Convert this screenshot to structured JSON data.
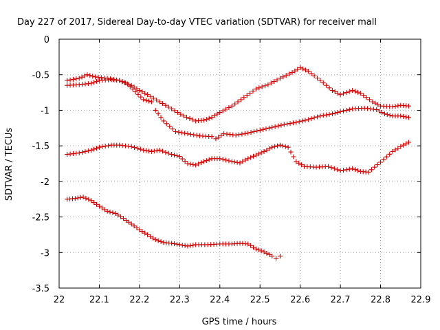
{
  "chart_data": {
    "type": "scatter",
    "title": "Day 227 of 2017, Sidereal Day-to-day VTEC variation (SDTVAR) for receiver mall",
    "xlabel": "GPS time / hours",
    "ylabel": "SDTVAR / TECUs",
    "xlim": [
      22,
      22.9
    ],
    "ylim": [
      -3.5,
      0
    ],
    "x_ticks": [
      "22",
      "22.1",
      "22.2",
      "22.3",
      "22.4",
      "22.5",
      "22.6",
      "22.7",
      "22.8",
      "22.9"
    ],
    "y_ticks": [
      "0",
      "-0.5",
      "-1",
      "-1.5",
      "-2",
      "-2.5",
      "-3",
      "-3.5"
    ],
    "grid": true,
    "marker": "plus",
    "color": "#cc0000",
    "series": [
      {
        "name": "series-1",
        "points": [
          [
            22.02,
            -0.58
          ],
          [
            22.05,
            -0.55
          ],
          [
            22.07,
            -0.5
          ],
          [
            22.09,
            -0.53
          ],
          [
            22.12,
            -0.55
          ],
          [
            22.15,
            -0.58
          ],
          [
            22.18,
            -0.65
          ],
          [
            22.2,
            -0.72
          ],
          [
            22.22,
            -0.78
          ],
          [
            22.25,
            -0.88
          ],
          [
            22.28,
            -0.98
          ],
          [
            22.31,
            -1.08
          ],
          [
            22.34,
            -1.15
          ],
          [
            22.36,
            -1.14
          ],
          [
            22.38,
            -1.1
          ],
          [
            22.4,
            -1.03
          ],
          [
            22.43,
            -0.94
          ],
          [
            22.46,
            -0.82
          ],
          [
            22.49,
            -0.7
          ],
          [
            22.52,
            -0.64
          ],
          [
            22.55,
            -0.55
          ],
          [
            22.58,
            -0.47
          ],
          [
            22.6,
            -0.4
          ],
          [
            22.62,
            -0.45
          ],
          [
            22.65,
            -0.58
          ],
          [
            22.68,
            -0.72
          ],
          [
            22.7,
            -0.78
          ],
          [
            22.73,
            -0.72
          ],
          [
            22.75,
            -0.76
          ],
          [
            22.78,
            -0.88
          ],
          [
            22.8,
            -0.94
          ],
          [
            22.83,
            -0.95
          ],
          [
            22.85,
            -0.93
          ],
          [
            22.87,
            -0.94
          ]
        ]
      },
      {
        "name": "series-2",
        "points": [
          [
            22.02,
            -0.65
          ],
          [
            22.05,
            -0.64
          ],
          [
            22.08,
            -0.62
          ],
          [
            22.1,
            -0.58
          ],
          [
            22.13,
            -0.57
          ],
          [
            22.15,
            -0.58
          ],
          [
            22.17,
            -0.63
          ],
          [
            22.19,
            -0.74
          ],
          [
            22.21,
            -0.85
          ],
          [
            22.23,
            -0.88
          ],
          [
            22.24,
            -1.0
          ],
          [
            22.26,
            -1.15
          ],
          [
            22.29,
            -1.3
          ],
          [
            22.32,
            -1.33
          ],
          [
            22.35,
            -1.36
          ],
          [
            22.38,
            -1.37
          ],
          [
            22.39,
            -1.4
          ],
          [
            22.41,
            -1.33
          ],
          [
            22.44,
            -1.35
          ],
          [
            22.47,
            -1.32
          ],
          [
            22.5,
            -1.28
          ],
          [
            22.53,
            -1.24
          ],
          [
            22.56,
            -1.2
          ],
          [
            22.59,
            -1.17
          ],
          [
            22.62,
            -1.13
          ],
          [
            22.65,
            -1.08
          ],
          [
            22.68,
            -1.05
          ],
          [
            22.7,
            -1.02
          ],
          [
            22.73,
            -0.98
          ],
          [
            22.76,
            -0.97
          ],
          [
            22.79,
            -0.99
          ],
          [
            22.81,
            -1.05
          ],
          [
            22.83,
            -1.08
          ],
          [
            22.85,
            -1.08
          ],
          [
            22.87,
            -1.1
          ]
        ]
      },
      {
        "name": "series-3",
        "points": [
          [
            22.02,
            -1.62
          ],
          [
            22.05,
            -1.6
          ],
          [
            22.08,
            -1.56
          ],
          [
            22.1,
            -1.52
          ],
          [
            22.13,
            -1.49
          ],
          [
            22.15,
            -1.49
          ],
          [
            22.18,
            -1.51
          ],
          [
            22.21,
            -1.56
          ],
          [
            22.23,
            -1.58
          ],
          [
            22.25,
            -1.56
          ],
          [
            22.28,
            -1.62
          ],
          [
            22.3,
            -1.65
          ],
          [
            22.32,
            -1.75
          ],
          [
            22.34,
            -1.77
          ],
          [
            22.36,
            -1.72
          ],
          [
            22.38,
            -1.68
          ],
          [
            22.4,
            -1.68
          ],
          [
            22.43,
            -1.72
          ],
          [
            22.45,
            -1.74
          ],
          [
            22.47,
            -1.68
          ],
          [
            22.49,
            -1.63
          ],
          [
            22.51,
            -1.58
          ],
          [
            22.53,
            -1.52
          ],
          [
            22.55,
            -1.49
          ],
          [
            22.57,
            -1.52
          ],
          [
            22.59,
            -1.72
          ],
          [
            22.61,
            -1.79
          ],
          [
            22.64,
            -1.8
          ],
          [
            22.67,
            -1.79
          ],
          [
            22.7,
            -1.85
          ],
          [
            22.73,
            -1.82
          ],
          [
            22.75,
            -1.86
          ],
          [
            22.77,
            -1.87
          ],
          [
            22.8,
            -1.73
          ],
          [
            22.83,
            -1.58
          ],
          [
            22.85,
            -1.51
          ],
          [
            22.87,
            -1.45
          ]
        ]
      },
      {
        "name": "series-4",
        "points": [
          [
            22.02,
            -2.25
          ],
          [
            22.04,
            -2.24
          ],
          [
            22.06,
            -2.22
          ],
          [
            22.08,
            -2.27
          ],
          [
            22.1,
            -2.35
          ],
          [
            22.12,
            -2.42
          ],
          [
            22.14,
            -2.45
          ],
          [
            22.16,
            -2.52
          ],
          [
            22.18,
            -2.6
          ],
          [
            22.2,
            -2.68
          ],
          [
            22.22,
            -2.75
          ],
          [
            22.24,
            -2.82
          ],
          [
            22.26,
            -2.86
          ],
          [
            22.28,
            -2.87
          ],
          [
            22.3,
            -2.89
          ],
          [
            22.32,
            -2.91
          ],
          [
            22.34,
            -2.89
          ],
          [
            22.37,
            -2.89
          ],
          [
            22.4,
            -2.88
          ],
          [
            22.43,
            -2.88
          ],
          [
            22.45,
            -2.87
          ],
          [
            22.47,
            -2.88
          ],
          [
            22.49,
            -2.95
          ],
          [
            22.51,
            -2.99
          ],
          [
            22.53,
            -3.05
          ],
          [
            22.54,
            -3.08
          ],
          [
            22.55,
            -3.05
          ]
        ]
      }
    ]
  }
}
